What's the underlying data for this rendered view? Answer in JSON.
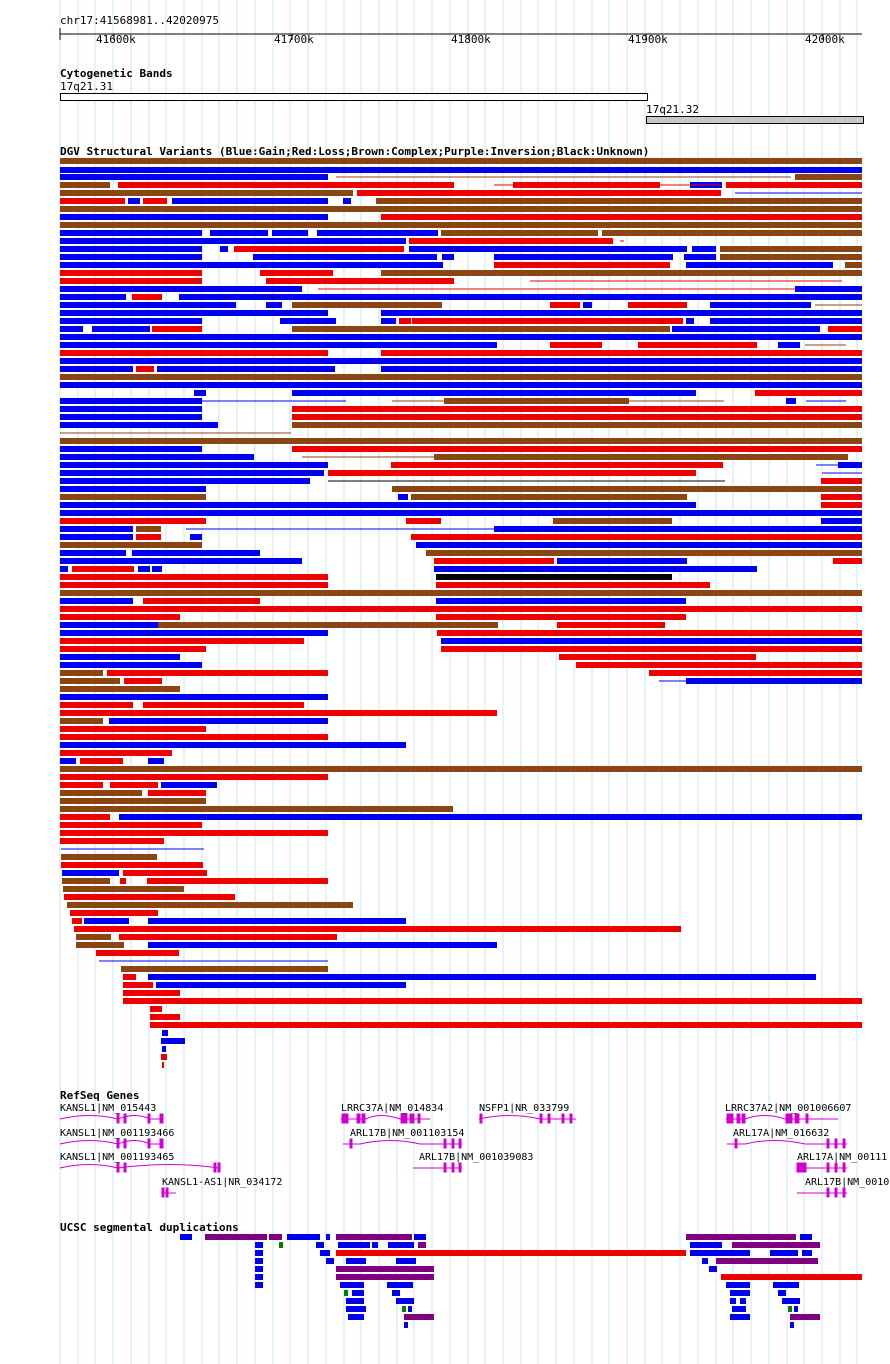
{
  "ruler": {
    "region": "chr17:41568981..42020975",
    "ticks": [
      "41600k",
      "41700k",
      "41800k",
      "41900k",
      "42000k"
    ]
  },
  "cyto": {
    "title": "Cytogenetic Bands",
    "band1": "17q21.31",
    "band2": "17q21.32"
  },
  "dgv": {
    "title": "DGV Structural Variants (Blue:Gain;Red:Loss;Brown:Complex;Purple:Inversion;Black:Unknown)",
    "colors": {
      "gain": "#0000ee",
      "loss": "#ee0000",
      "complex": "#8b4513",
      "inversion": "#800080",
      "unknown": "#000000"
    }
  },
  "refseq": {
    "title": "RefSeq Genes",
    "genes": [
      {
        "label": "KANSL1|NM_015443"
      },
      {
        "label": "KANSL1|NM_001193466"
      },
      {
        "label": "KANSL1|NM_001193465"
      },
      {
        "label": "KANSL1-AS1|NR_034172"
      },
      {
        "label": "LRRC37A|NM_014834"
      },
      {
        "label": "ARL17B|NM_001103154"
      },
      {
        "label": "ARL17B|NM_001039083"
      },
      {
        "label": "NSFP1|NR_033799"
      },
      {
        "label": "LRRC37A2|NM_001006607"
      },
      {
        "label": "ARL17A|NM_016632"
      },
      {
        "label": "ARL17A|NM_00111"
      },
      {
        "label": "ARL17B|NM_0010"
      }
    ]
  },
  "segdup": {
    "title": "UCSC segmental duplications"
  }
}
